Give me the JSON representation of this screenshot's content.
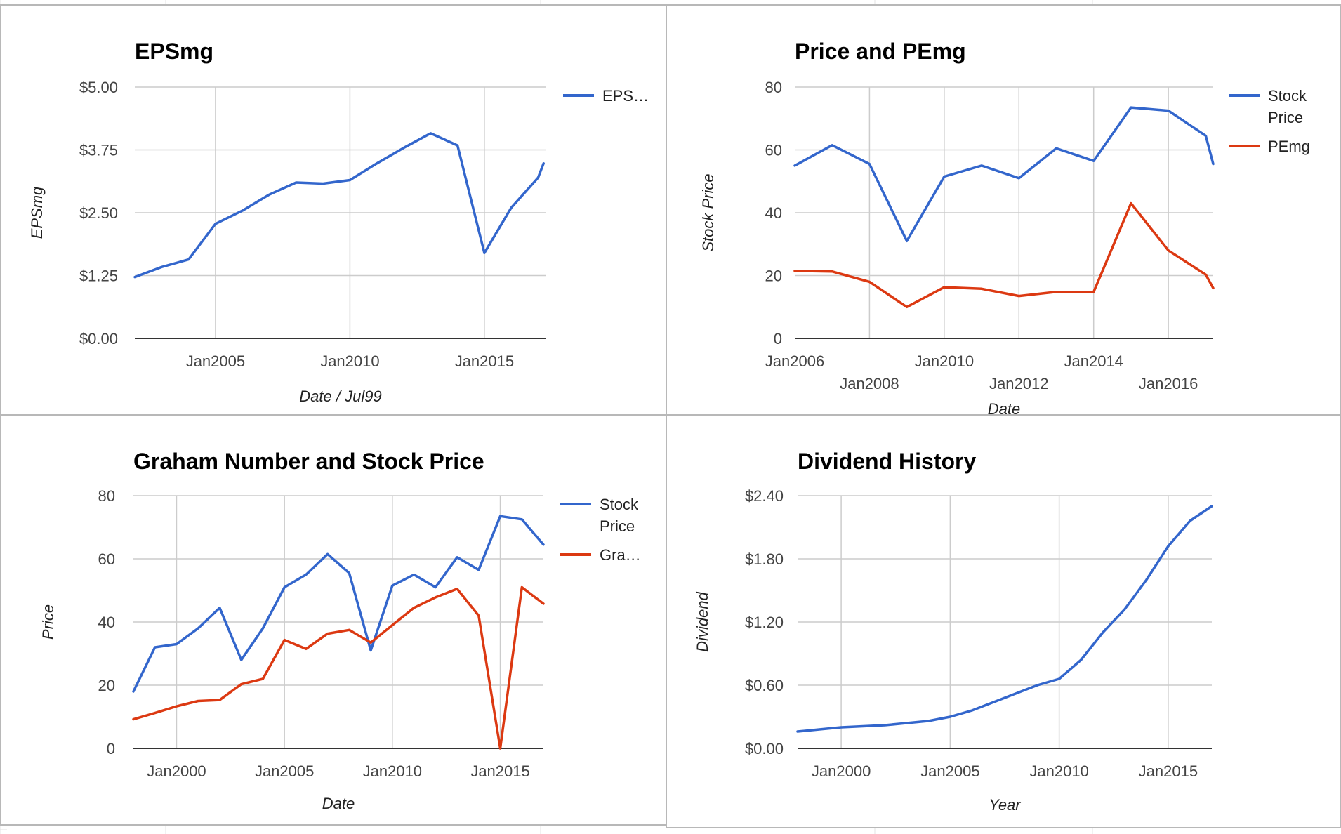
{
  "colors": {
    "blue": "#3366cc",
    "red": "#dc3912"
  },
  "chart_data": [
    {
      "type": "line",
      "title": "EPSmg",
      "xlabel": "Date / Jul99",
      "ylabel": "EPSmg",
      "xlim": [
        2002.0,
        2017.3
      ],
      "ylim": [
        0,
        5
      ],
      "y_ticks": [
        0,
        1.25,
        2.5,
        3.75,
        5
      ],
      "y_tick_labels": [
        "$0.00",
        "$1.25",
        "$2.50",
        "$3.75",
        "$5.00"
      ],
      "x_ticks": [
        2005,
        2010,
        2015
      ],
      "x_tick_labels": [
        "Jan2005",
        "Jan2010",
        "Jan2015"
      ],
      "x_grid": [
        2005,
        2010,
        2015
      ],
      "legend_position": "right",
      "series": [
        {
          "name": "EPS…",
          "color": "#3366cc",
          "x": [
            2002,
            2003,
            2004,
            2005,
            2006,
            2007,
            2008,
            2009,
            2010,
            2011,
            2012,
            2013,
            2014,
            2015,
            2016,
            2017,
            2017.2
          ],
          "y": [
            1.22,
            1.42,
            1.57,
            2.28,
            2.54,
            2.86,
            3.1,
            3.08,
            3.15,
            3.48,
            3.79,
            4.08,
            3.84,
            1.7,
            2.6,
            3.2,
            3.48
          ]
        }
      ]
    },
    {
      "type": "line",
      "title": "Price and PEmg",
      "xlabel": "Date",
      "ylabel": "Stock Price",
      "xlim": [
        2006.0,
        2017.2
      ],
      "ylim": [
        0,
        80
      ],
      "y_ticks": [
        0,
        20,
        40,
        60,
        80
      ],
      "y_tick_labels": [
        "0",
        "20",
        "40",
        "60",
        "80"
      ],
      "x_ticks_upper": [
        2006,
        2010,
        2014
      ],
      "x_tick_labels_upper": [
        "Jan2006",
        "Jan2010",
        "Jan2014"
      ],
      "x_ticks_lower": [
        2008,
        2012,
        2016
      ],
      "x_tick_labels_lower": [
        "Jan2008",
        "Jan2012",
        "Jan2016"
      ],
      "x_grid": [
        2008,
        2010,
        2012,
        2014,
        2016
      ],
      "legend_position": "right",
      "series": [
        {
          "name": "Stock Price",
          "legend_lines": [
            "Stock",
            "Price"
          ],
          "color": "#3366cc",
          "x": [
            2006,
            2007,
            2008,
            2009,
            2010,
            2011,
            2012,
            2013,
            2014,
            2015,
            2016,
            2017,
            2017.2
          ],
          "y": [
            55,
            61.5,
            55.5,
            31,
            51.5,
            55,
            51,
            60.5,
            56.5,
            73.5,
            72.5,
            64.5,
            55.5
          ]
        },
        {
          "name": "PEmg",
          "color": "#dc3912",
          "x": [
            2006,
            2007,
            2008,
            2009,
            2010,
            2011,
            2012,
            2013,
            2014,
            2015,
            2016,
            2017,
            2017.2
          ],
          "y": [
            21.5,
            21.3,
            18,
            10,
            16.3,
            15.8,
            13.5,
            14.8,
            14.8,
            43,
            28,
            20.3,
            16
          ]
        }
      ]
    },
    {
      "type": "line",
      "title": "Graham Number and Stock Price",
      "xlabel": "Date",
      "ylabel": "Price",
      "xlim": [
        1998.0,
        2017.0
      ],
      "ylim": [
        0,
        80
      ],
      "y_ticks": [
        0,
        20,
        40,
        60,
        80
      ],
      "y_tick_labels": [
        "0",
        "20",
        "40",
        "60",
        "80"
      ],
      "x_ticks": [
        2000,
        2005,
        2010,
        2015
      ],
      "x_tick_labels": [
        "Jan2000",
        "Jan2005",
        "Jan2010",
        "Jan2015"
      ],
      "x_grid": [
        2000,
        2005,
        2010,
        2015
      ],
      "legend_position": "right",
      "series": [
        {
          "name": "Stock Price",
          "legend_lines": [
            "Stock",
            "Price"
          ],
          "color": "#3366cc",
          "x": [
            1998,
            1999,
            2000,
            2001,
            2002,
            2003,
            2004,
            2005,
            2006,
            2007,
            2008,
            2009,
            2010,
            2011,
            2012,
            2013,
            2014,
            2015,
            2016,
            2017
          ],
          "y": [
            18,
            32,
            33,
            38,
            44.5,
            28,
            38,
            51,
            55,
            61.5,
            55.5,
            31,
            51.5,
            55,
            51,
            60.5,
            56.5,
            73.5,
            72.5,
            64.5
          ]
        },
        {
          "name": "Gra…",
          "color": "#dc3912",
          "x": [
            1998,
            1999,
            2000,
            2001,
            2002,
            2003,
            2004,
            2005,
            2006,
            2007,
            2008,
            2009,
            2010,
            2011,
            2012,
            2013,
            2014,
            2015,
            2016,
            2017
          ],
          "y": [
            9.2,
            11.2,
            13.3,
            15,
            15.3,
            20.3,
            22,
            34.3,
            31.5,
            36.3,
            37.5,
            33.5,
            39,
            44.5,
            47.8,
            50.5,
            42,
            0,
            51,
            45.8
          ]
        }
      ]
    },
    {
      "type": "line",
      "title": "Dividend History",
      "xlabel": "Year",
      "ylabel": "Dividend",
      "xlim": [
        1998.0,
        2017.0
      ],
      "ylim": [
        0,
        2.4
      ],
      "y_ticks": [
        0,
        0.6,
        1.2,
        1.8,
        2.4
      ],
      "y_tick_labels": [
        "$0.00",
        "$0.60",
        "$1.20",
        "$1.80",
        "$2.40"
      ],
      "x_ticks": [
        2000,
        2005,
        2010,
        2015
      ],
      "x_tick_labels": [
        "Jan2000",
        "Jan2005",
        "Jan2010",
        "Jan2015"
      ],
      "x_grid": [
        2000,
        2005,
        2010,
        2015
      ],
      "legend_position": "none",
      "series": [
        {
          "name": "",
          "color": "#3366cc",
          "x": [
            1998,
            1999,
            2000,
            2001,
            2002,
            2003,
            2004,
            2005,
            2006,
            2007,
            2008,
            2009,
            2010,
            2011,
            2012,
            2013,
            2014,
            2015,
            2016,
            2017
          ],
          "y": [
            0.16,
            0.18,
            0.2,
            0.21,
            0.22,
            0.24,
            0.26,
            0.3,
            0.36,
            0.44,
            0.52,
            0.6,
            0.66,
            0.84,
            1.1,
            1.32,
            1.6,
            1.92,
            2.16,
            2.3
          ]
        }
      ]
    }
  ]
}
